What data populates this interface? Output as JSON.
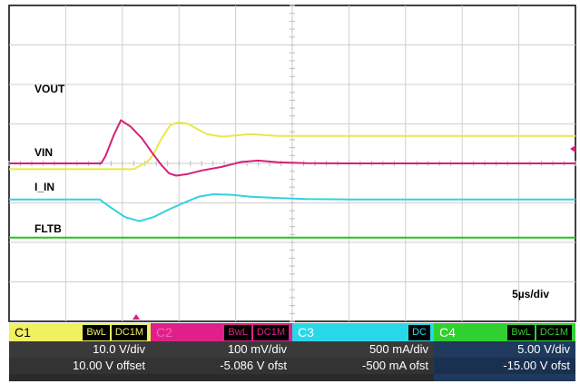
{
  "chart_data": {
    "type": "line",
    "title": "",
    "xlabel": "",
    "ylabel": "",
    "grid": true,
    "timebase": "5µs/div",
    "x_divisions": 10,
    "y_divisions": 8,
    "series": [
      {
        "name": "VOUT",
        "color": "#e8e84a",
        "points": [
          [
            0,
            -2.83
          ],
          [
            4.4,
            -2.83
          ],
          [
            4.6,
            -2.7
          ],
          [
            4.9,
            -2.5
          ],
          [
            5.1,
            -2.2
          ],
          [
            5.35,
            -1.6
          ],
          [
            5.7,
            -0.95
          ],
          [
            6.0,
            -0.85
          ],
          [
            6.3,
            -0.9
          ],
          [
            6.6,
            -1.1
          ],
          [
            7.0,
            -1.35
          ],
          [
            7.5,
            -1.45
          ],
          [
            8.0,
            -1.4
          ],
          [
            8.5,
            -1.34
          ],
          [
            9.0,
            -1.38
          ],
          [
            9.5,
            -1.42
          ],
          [
            10.0,
            -1.42
          ],
          [
            12.0,
            -1.42
          ],
          [
            20.0,
            -1.42
          ]
        ]
      },
      {
        "name": "VIN",
        "color": "#d6207a",
        "points": [
          [
            0,
            0
          ],
          [
            3.25,
            0
          ],
          [
            3.4,
            0.3
          ],
          [
            3.7,
            1.2
          ],
          [
            3.95,
            1.83
          ],
          [
            4.3,
            1.55
          ],
          [
            4.7,
            1.05
          ],
          [
            5.05,
            0.45
          ],
          [
            5.4,
            -0.1
          ],
          [
            5.65,
            -0.42
          ],
          [
            5.9,
            -0.52
          ],
          [
            6.3,
            -0.45
          ],
          [
            6.8,
            -0.3
          ],
          [
            7.5,
            -0.15
          ],
          [
            8.2,
            0.06
          ],
          [
            8.8,
            0.12
          ],
          [
            9.5,
            0.05
          ],
          [
            10.5,
            0.01
          ],
          [
            12.0,
            0
          ],
          [
            20.0,
            0
          ]
        ]
      },
      {
        "name": "I_IN",
        "color": "#32d2e0",
        "points": [
          [
            0,
            0
          ],
          [
            3.2,
            0
          ],
          [
            3.6,
            -0.35
          ],
          [
            4.1,
            -0.75
          ],
          [
            4.6,
            -0.92
          ],
          [
            5.1,
            -0.75
          ],
          [
            5.6,
            -0.45
          ],
          [
            6.1,
            -0.18
          ],
          [
            6.7,
            0.12
          ],
          [
            7.2,
            0.22
          ],
          [
            7.8,
            0.2
          ],
          [
            8.5,
            0.12
          ],
          [
            9.5,
            0.06
          ],
          [
            10.5,
            0.02
          ],
          [
            12.0,
            0
          ],
          [
            20.0,
            0
          ]
        ]
      },
      {
        "name": "FLTB",
        "color": "#22c422",
        "points": [
          [
            0,
            0
          ],
          [
            20.0,
            0
          ]
        ]
      }
    ]
  },
  "channels": [
    {
      "name": "C1",
      "color": "#f0f060",
      "flag1": "BwL",
      "flag2": "DC1M",
      "scale": "10.0 V/div",
      "offset": "10.00 V offset"
    },
    {
      "name": "C2",
      "color": "#e0208a",
      "flag1": "BwL",
      "flag2": "DC1M",
      "scale": "100 mV/div",
      "offset": "-5.086 V ofst"
    },
    {
      "name": "C3",
      "color": "#28d8e8",
      "flag1": "",
      "flag2": "DC",
      "scale": "500 mA/div",
      "offset": "-500 mA ofst"
    },
    {
      "name": "C4",
      "color": "#30d030",
      "flag1": "BwL",
      "flag2": "DC1M",
      "scale": "5.00 V/div",
      "offset": "-15.00 V ofst"
    }
  ]
}
